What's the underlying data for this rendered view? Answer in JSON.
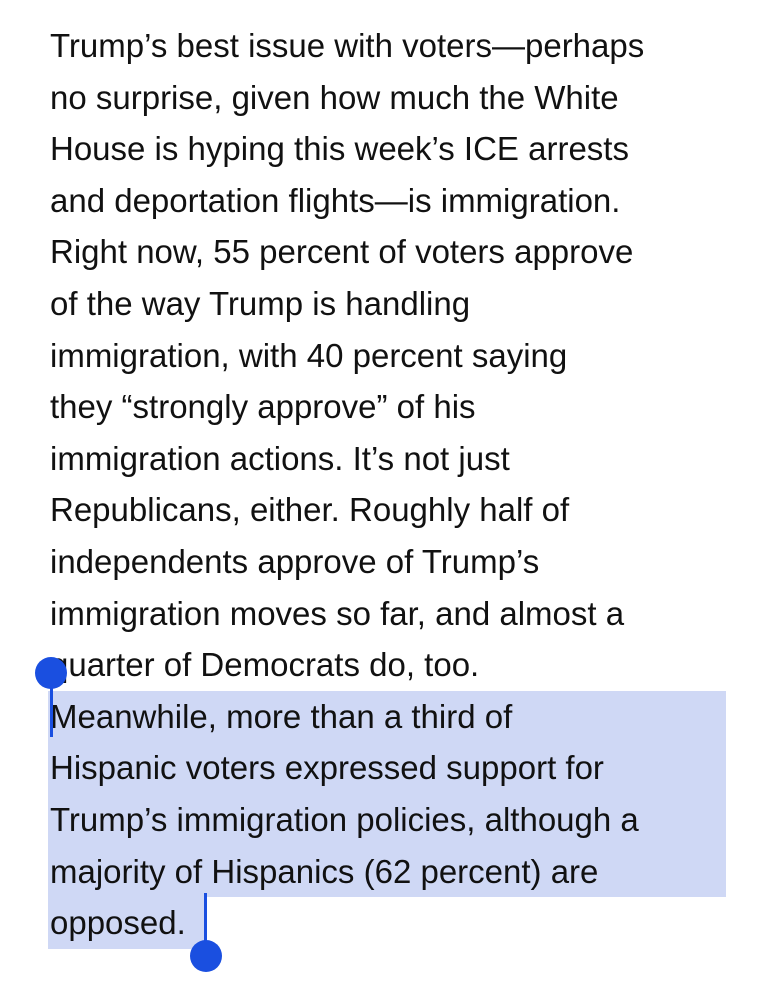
{
  "article": {
    "lines": [
      "Trump’s best issue with voters—perhaps",
      "no surprise, given how much the White",
      "House is hyping this week’s ICE arrests",
      "and deportation flights—is immigration.",
      "Right now, 55 percent of voters approve",
      "of the way Trump is handling",
      "immigration, with 40 percent saying",
      "they “strongly approve” of his",
      "immigration actions. It’s not just",
      "Republicans, either. Roughly half of",
      "independents approve of Trump’s",
      "immigration moves so far, and almost a",
      "quarter of Democrats do, too."
    ],
    "selected_lines": [
      "Meanwhile, more than a third of",
      "Hispanic voters expressed support for",
      "Trump’s immigration policies, although a",
      "majority of Hispanics (62 percent) are",
      "opposed."
    ]
  },
  "colors": {
    "selection_highlight": "#cfd8f5",
    "selection_handle": "#1a4fe0",
    "text": "#111111",
    "background": "#ffffff"
  }
}
